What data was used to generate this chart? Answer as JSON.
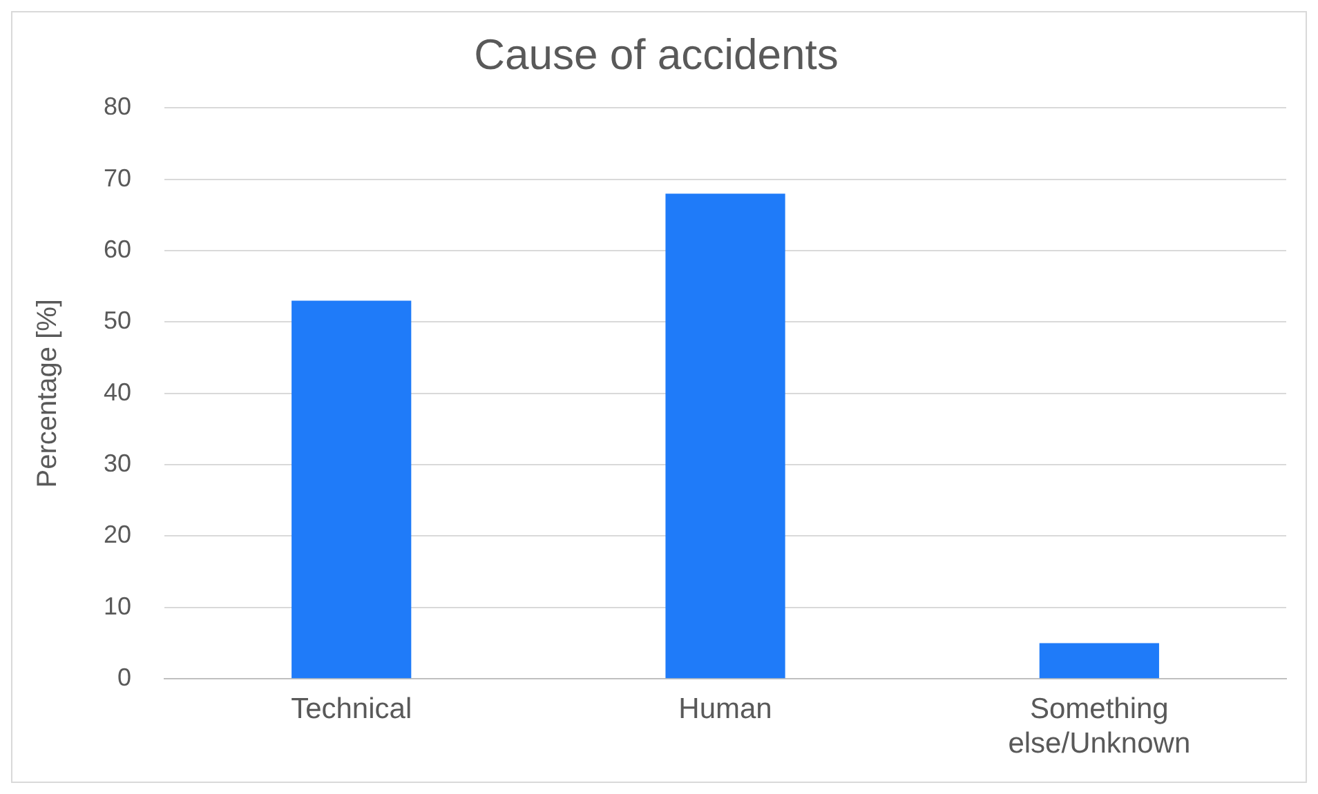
{
  "chart_data": {
    "type": "bar",
    "title": "Cause of accidents",
    "ylabel": "Percentage [%]",
    "categories": [
      "Technical",
      "Human",
      "Something else/Unknown"
    ],
    "values": [
      53,
      68,
      5
    ],
    "color": "#1f7bf9",
    "ylim": [
      0,
      80
    ],
    "yticks": [
      0,
      10,
      20,
      30,
      40,
      50,
      60,
      70,
      80
    ],
    "grid": "y",
    "legend": false
  }
}
